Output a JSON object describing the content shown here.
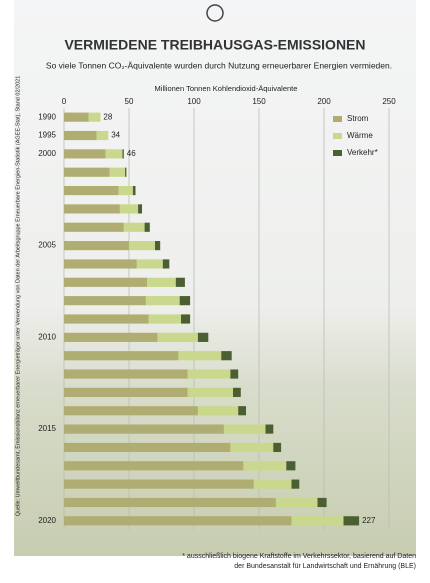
{
  "chart_data": {
    "type": "stacked-barh",
    "title": "VERMIEDENE TREIBHAUSGAS-EMISSIONEN",
    "subtitle": "So viele Tonnen CO₂-Äquivalente wurden durch Nutzung erneuerbarer Energien vermieden.",
    "x_label": "Millionen Tonnen Kohlendioxid-Äquivalente",
    "source": "Quelle: Umweltbundesamt, Emissionsbilanz erneuerbarer Energieträger unter Verwendung von Daten der Arbeitsgruppe Erneuerbare Energien-Statistik (AGEE-Stat), Stand 02/2021",
    "footnote": "* ausschließlich biogene Kraftstoffe im Verkehrssektor, basierend auf Daten der Bundesanstalt für Landwirtschaft und Ernährung (BLE)",
    "categories": [
      "1990",
      "1995",
      "2000",
      null,
      null,
      null,
      null,
      "2005",
      null,
      null,
      null,
      null,
      "2010",
      null,
      null,
      null,
      null,
      "2015",
      null,
      null,
      null,
      null,
      "2020"
    ],
    "series": [
      {
        "name": "Strom",
        "color": "#b0ad72",
        "values": [
          19,
          25,
          32,
          35,
          42,
          43,
          46,
          50,
          56,
          64,
          63,
          65,
          72,
          88,
          95,
          95,
          103,
          123,
          128,
          138,
          146,
          163,
          175
        ]
      },
      {
        "name": "Wärme",
        "color": "#c9d88c",
        "values": [
          9,
          9,
          13,
          12,
          11,
          14,
          16,
          20,
          20,
          22,
          26,
          25,
          31,
          33,
          33,
          35,
          31,
          32,
          33,
          33,
          29,
          32,
          40
        ]
      },
      {
        "name": "Verkehr*",
        "color": "#4b5f33",
        "values": [
          0,
          0,
          1,
          1,
          2,
          3,
          4,
          4,
          5,
          7,
          8,
          7,
          8,
          8,
          6,
          6,
          6,
          6,
          6,
          7,
          6,
          7,
          12
        ]
      }
    ],
    "total_labels": [
      28,
      34,
      46,
      null,
      null,
      null,
      null,
      null,
      null,
      null,
      null,
      null,
      null,
      null,
      null,
      null,
      null,
      null,
      null,
      null,
      null,
      null,
      227
    ],
    "xlim": [
      0,
      250
    ],
    "xticks": [
      0,
      50,
      100,
      150,
      200,
      250
    ],
    "grid": true,
    "legend": "top-right"
  }
}
